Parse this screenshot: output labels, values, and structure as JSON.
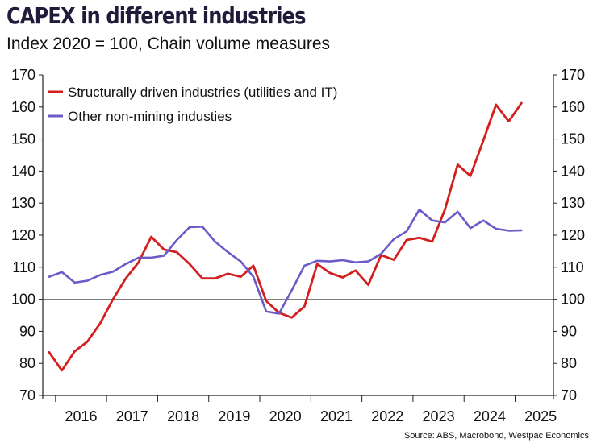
{
  "header": {
    "title": "CAPEX in different industries",
    "subtitle": "Index 2020 = 100, Chain volume measures"
  },
  "footer": {
    "source": "Source: ABS, Macrobond, Westpac Economics"
  },
  "colors": {
    "series_1": "#d41f1f",
    "series_2": "#6a5cc8",
    "axis": "#222222",
    "reference_line": "#555555"
  },
  "chart_data": {
    "type": "line",
    "title": "CAPEX in different industries",
    "subtitle": "Index 2020 = 100, Chain volume measures",
    "xlabel": "",
    "ylabel": "",
    "x_tick_labels": [
      "2016",
      "2017",
      "2018",
      "2019",
      "2020",
      "2021",
      "2022",
      "2023",
      "2024",
      "2025"
    ],
    "y_ticks": [
      70,
      80,
      90,
      100,
      110,
      120,
      130,
      140,
      150,
      160,
      170
    ],
    "ylim": [
      70,
      170
    ],
    "xlim": [
      2015.75,
      2025.75
    ],
    "secondary_y_axis": "mirrors primary",
    "reference_line_y": 100,
    "legend_position": "top-left",
    "grid": false,
    "x": [
      2015.875,
      2016.125,
      2016.375,
      2016.625,
      2016.875,
      2017.125,
      2017.375,
      2017.625,
      2017.875,
      2018.125,
      2018.375,
      2018.625,
      2018.875,
      2019.125,
      2019.375,
      2019.625,
      2019.875,
      2020.125,
      2020.375,
      2020.625,
      2020.875,
      2021.125,
      2021.375,
      2021.625,
      2021.875,
      2022.125,
      2022.375,
      2022.625,
      2022.875,
      2023.125,
      2023.375,
      2023.625,
      2023.875,
      2024.125,
      2024.375,
      2024.625,
      2024.875,
      2025.125,
      2025.375
    ],
    "series": [
      {
        "name": "Structurally driven industries (utilities and IT)",
        "color": "#d41f1f",
        "values": [
          83.5,
          77.8,
          83.8,
          86.8,
          92.5,
          100.0,
          106.5,
          111.5,
          119.5,
          115.5,
          114.7,
          111.0,
          106.5,
          106.5,
          108.0,
          107.0,
          110.5,
          99.5,
          95.8,
          94.3,
          97.8,
          111.0,
          108.2,
          106.8,
          109.0,
          104.5,
          113.8,
          112.3,
          118.5,
          119.2,
          118.0,
          128.0,
          142.0,
          138.5,
          149.5,
          160.7,
          155.5,
          161.2,
          null
        ]
      },
      {
        "name": "Other non-mining industies",
        "color": "#6a5cc8",
        "values": [
          107.0,
          108.5,
          105.2,
          105.8,
          107.6,
          108.6,
          111.0,
          113.0,
          113.0,
          113.6,
          118.5,
          122.5,
          122.7,
          118.0,
          114.7,
          111.8,
          107.0,
          96.2,
          95.5,
          102.8,
          110.5,
          112.0,
          111.8,
          112.2,
          111.5,
          111.8,
          114.2,
          118.8,
          121.2,
          128.0,
          124.6,
          124.0,
          127.3,
          122.2,
          124.6,
          122.0,
          121.4,
          121.5,
          null
        ]
      }
    ]
  }
}
